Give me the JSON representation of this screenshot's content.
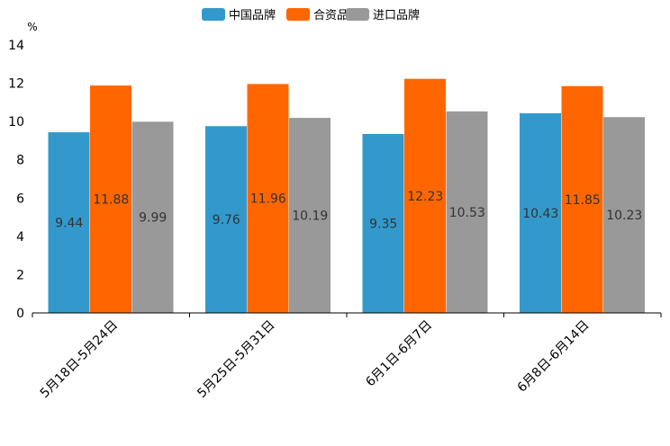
{
  "chart_data": {
    "type": "bar",
    "title": "",
    "xlabel": "",
    "ylabel": "%",
    "ylim": [
      0,
      14
    ],
    "yticks": [
      0,
      2,
      4,
      6,
      8,
      10,
      12,
      14
    ],
    "grid": false,
    "legend_position": "top-center",
    "categories": [
      "5月18日-5月24日",
      "5月25日-5月31日",
      "6月1日-6月7日",
      "6月8日-6月14日"
    ],
    "series": [
      {
        "name": "中国品牌",
        "color": "#3399cc",
        "values": [
          9.44,
          9.76,
          9.35,
          10.43
        ]
      },
      {
        "name": "合资品牌",
        "color": "#ff6600",
        "values": [
          11.88,
          11.96,
          12.23,
          11.85
        ]
      },
      {
        "name": "进口品牌",
        "color": "#999999",
        "values": [
          9.99,
          10.19,
          10.53,
          10.23
        ]
      }
    ]
  }
}
